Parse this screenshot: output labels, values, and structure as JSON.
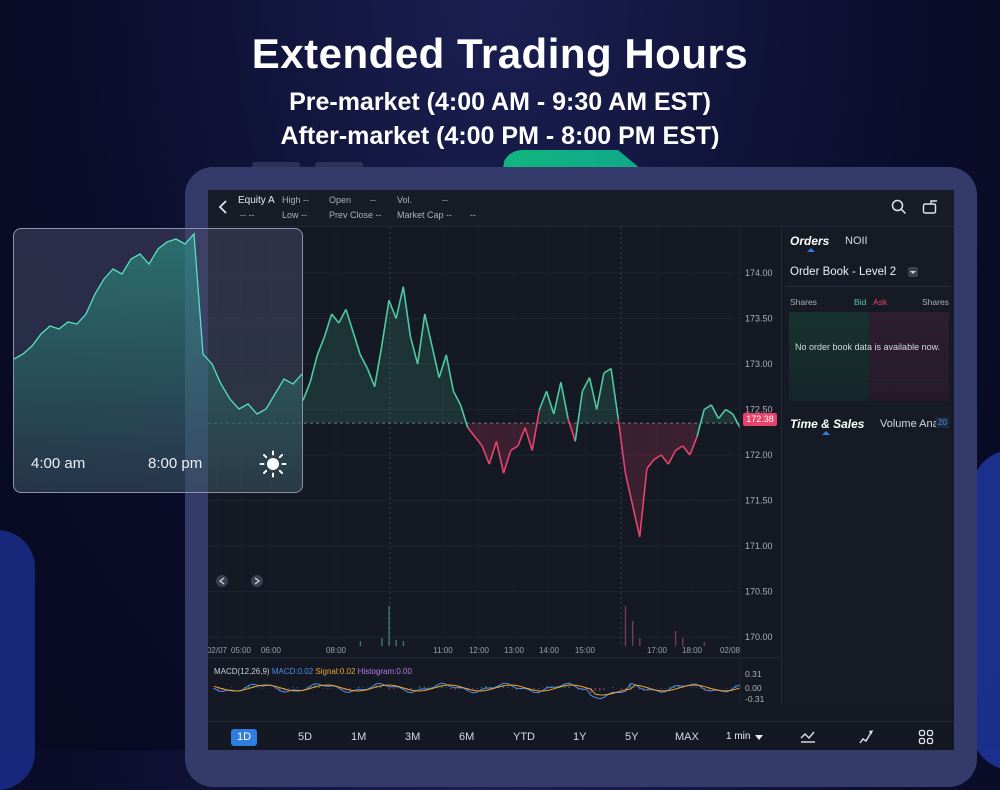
{
  "headline": {
    "title": "Extended Trading Hours",
    "premarket": "Pre-market (4:00 AM - 9:30 AM EST)",
    "aftermarket": "After-market (4:00 PM - 8:00 PM EST)"
  },
  "topbar": {
    "symbol": "Equity A",
    "symbol_sub": "-- --",
    "high_label": "High --",
    "low_label": "Low --",
    "open_label": "Open",
    "open_value": "--",
    "prev_close_label": "Prev Close --",
    "vol_label": "Vol.",
    "vol_value": "--",
    "mktcap_label": "Market Cap --",
    "mktcap_value": "--"
  },
  "overlay": {
    "start_label": "4:00 am",
    "end_label": "8:00 pm"
  },
  "chart_data": {
    "type": "line",
    "title": "",
    "price_axis": [
      "174.00",
      "173.50",
      "173.00",
      "172.50",
      "172.00",
      "171.50",
      "171.00",
      "170.50",
      "170.00"
    ],
    "price_ticks": [
      174.0,
      173.5,
      173.0,
      172.5,
      172.0,
      171.5,
      171.0,
      170.5,
      170.0
    ],
    "time_axis": [
      "02/07",
      "05:00",
      "06:00",
      "08:00",
      "11:00",
      "12:00",
      "13:00",
      "14:00",
      "15:00",
      "17:00",
      "18:00",
      "02/08"
    ],
    "last_price": "172.38",
    "last_price_value": 172.38,
    "reference_price": 172.35,
    "price_series": [
      172.6,
      172.8,
      173.1,
      173.3,
      173.55,
      173.45,
      173.6,
      173.35,
      173.1,
      172.95,
      172.75,
      173.2,
      173.7,
      173.5,
      173.85,
      173.3,
      173.0,
      173.55,
      173.2,
      172.85,
      173.1,
      172.7,
      172.55,
      172.3,
      172.2,
      172.1,
      171.9,
      172.15,
      171.8,
      172.05,
      172.1,
      172.3,
      172.05,
      172.5,
      172.7,
      172.45,
      172.8,
      172.4,
      172.15,
      172.7,
      172.85,
      172.5,
      172.9,
      172.95,
      172.4,
      171.8,
      171.45,
      171.1,
      171.85,
      171.95,
      172.0,
      171.9,
      172.05,
      172.1,
      172.0,
      172.2,
      172.5,
      172.55,
      172.4,
      172.5,
      172.45,
      172.3
    ],
    "volume_series": [
      0,
      0,
      0,
      0,
      0,
      0,
      0,
      0,
      0.05,
      0,
      0,
      0.08,
      0.4,
      0.06,
      0.05,
      0,
      0,
      0,
      0,
      0,
      0,
      0,
      0,
      0,
      0,
      0,
      0,
      0,
      0,
      0,
      0,
      0,
      0,
      0,
      0,
      0,
      0,
      0,
      0,
      0,
      0,
      0,
      0,
      0,
      0,
      0.4,
      0.25,
      0.08,
      0,
      0,
      0,
      0,
      0.15,
      0.08,
      0,
      0,
      0.04,
      0,
      0,
      0,
      0,
      0
    ],
    "macd": {
      "label": "MACD(12,26,9)",
      "macd": "MACD:0.02",
      "signal": "Signal:0.02",
      "histogram": "Histogram:0.00",
      "axis": [
        "0.31",
        "0.00",
        "-0.31"
      ]
    }
  },
  "panel": {
    "tab_orders": "Orders",
    "tab_noii": "NOII",
    "orderbook_title": "Order Book - Level 2",
    "col_shares": "Shares",
    "col_bid": "Bid",
    "col_ask": "Ask",
    "col_shares2": "Shares",
    "empty_msg": "No order book data is available now.",
    "tab_ts": "Time & Sales",
    "tab_volume": "Volume Ana",
    "badge": "20"
  },
  "ranges": [
    "1D",
    "5D",
    "1M",
    "3M",
    "6M",
    "YTD",
    "1Y",
    "5Y",
    "MAX"
  ],
  "interval": "1 min",
  "colors": {
    "up": "#4fc9a0",
    "down": "#e8436d",
    "accent": "#2f7de1",
    "bg": "#141923"
  }
}
